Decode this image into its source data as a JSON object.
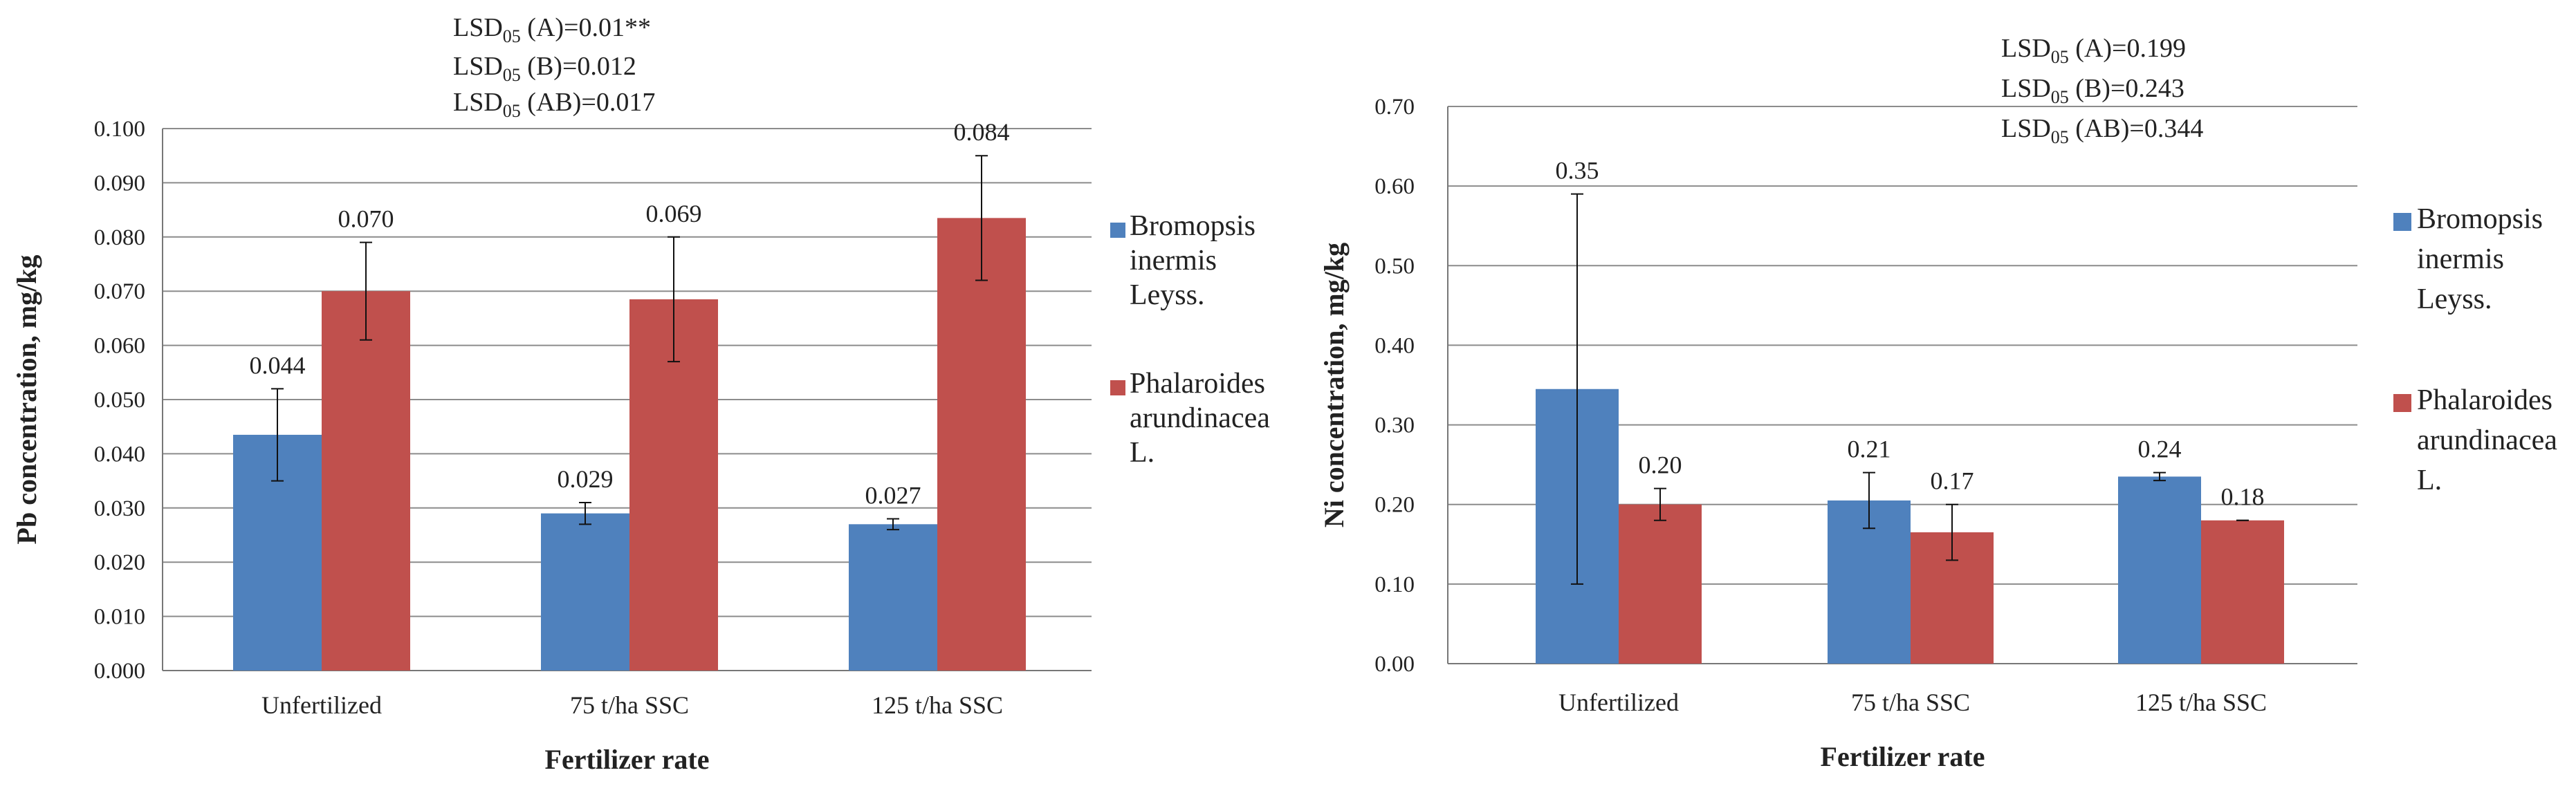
{
  "chart_data": [
    {
      "type": "bar",
      "categories": [
        "Unfertilized",
        "75 t/ha SSC",
        "125 t/ha SSC"
      ],
      "series": [
        {
          "name": "Bromopsis inermis Leyss.",
          "name_lines": [
            "Bromopsis",
            "inermis",
            "Leyss."
          ],
          "color": "#4F81BD",
          "values": [
            0.0435,
            0.029,
            0.027
          ],
          "labels": [
            "0.044",
            "0.029",
            "0.027"
          ],
          "error_low": [
            0.035,
            0.027,
            0.026
          ],
          "error_high": [
            0.052,
            0.031,
            0.028
          ]
        },
        {
          "name": "Phalaroides arundinacea L.",
          "name_lines": [
            "Phalaroides",
            "arundinacea",
            "L."
          ],
          "color": "#C0504D",
          "values": [
            0.07,
            0.0685,
            0.0835
          ],
          "labels": [
            "0.070",
            "0.069",
            "0.084"
          ],
          "error_low": [
            0.061,
            0.057,
            0.072
          ],
          "error_high": [
            0.079,
            0.08,
            0.095
          ]
        }
      ],
      "ylim": [
        0,
        0.1
      ],
      "yticks": [
        "0.000",
        "0.010",
        "0.020",
        "0.030",
        "0.040",
        "0.050",
        "0.060",
        "0.070",
        "0.080",
        "0.090",
        "0.100"
      ],
      "ylabel": "Pb concentration, mg/kg",
      "xlabel": "Fertilizer rate",
      "grid": true,
      "legend": "right",
      "annotations": [
        {
          "pre": "LSD",
          "sub": "05",
          "post": " (A)=0.01**"
        },
        {
          "pre": "LSD",
          "sub": "05",
          "post": " (B)=0.012"
        },
        {
          "pre": "LSD",
          "sub": "05",
          "post": " (AB)=0.017"
        }
      ]
    },
    {
      "type": "bar",
      "categories": [
        "Unfertilized",
        "75 t/ha SSC",
        "125 t/ha SSC"
      ],
      "series": [
        {
          "name": "Bromopsis inermis Leyss.",
          "name_lines": [
            "Bromopsis",
            "inermis",
            "Leyss."
          ],
          "color": "#4F81BD",
          "values": [
            0.345,
            0.205,
            0.235
          ],
          "labels": [
            "0.35",
            "0.21",
            "0.24"
          ],
          "error_low": [
            0.1,
            0.17,
            0.23
          ],
          "error_high": [
            0.59,
            0.24,
            0.24
          ]
        },
        {
          "name": "Phalaroides arundinacea L.",
          "name_lines": [
            "Phalaroides",
            "arundinacea",
            "L."
          ],
          "color": "#C0504D",
          "values": [
            0.2,
            0.165,
            0.18
          ],
          "labels": [
            "0.20",
            "0.17",
            "0.18"
          ],
          "error_low": [
            0.18,
            0.13,
            0.18
          ],
          "error_high": [
            0.22,
            0.2,
            0.18
          ]
        }
      ],
      "ylim": [
        0,
        0.7
      ],
      "yticks": [
        "0.00",
        "0.10",
        "0.20",
        "0.30",
        "0.40",
        "0.50",
        "0.60",
        "0.70"
      ],
      "ylabel": "Ni concentration, mg/kg",
      "xlabel": "Fertilizer rate",
      "grid": true,
      "legend": "right",
      "annotations": [
        {
          "pre": "LSD",
          "sub": "05",
          "post": " (A)=0.199"
        },
        {
          "pre": "LSD",
          "sub": "05",
          "post": " (B)=0.243"
        },
        {
          "pre": "LSD",
          "sub": "05",
          "post": " (AB)=0.344"
        }
      ]
    }
  ]
}
